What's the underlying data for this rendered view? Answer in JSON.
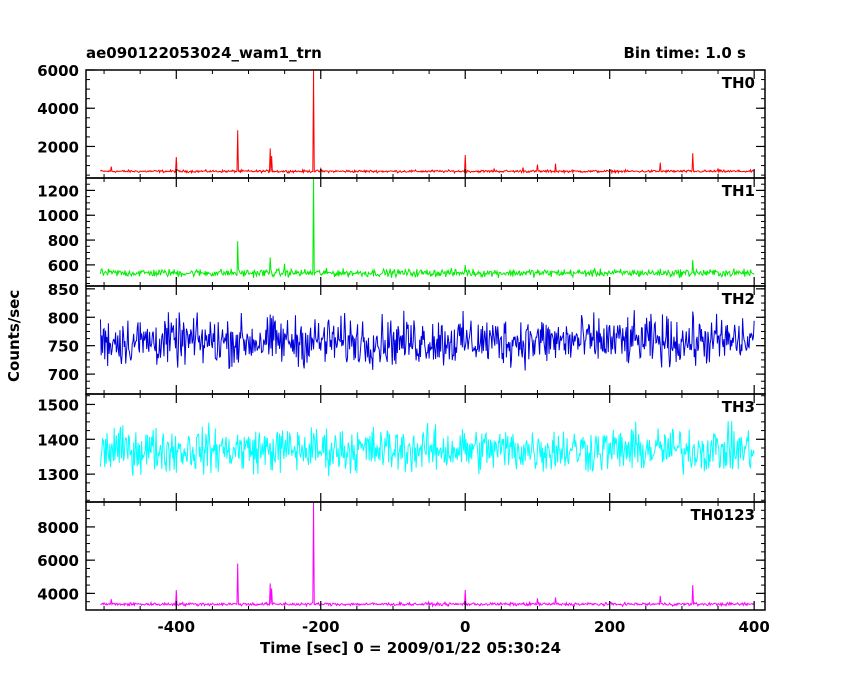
{
  "header": {
    "title": "ae090122053024_wam1_trn",
    "bin_time": "Bin time: 1.0 s"
  },
  "chart_data": {
    "type": "line",
    "xlabel": "Time [sec] 0 = 2009/01/22 05:30:24",
    "ylabel": "Counts/sec",
    "xlim": [
      -525,
      415
    ],
    "x_ticks": [
      -400,
      -200,
      0,
      200,
      400
    ],
    "x_range": [
      -505,
      400
    ],
    "panels": [
      {
        "name": "TH0",
        "color": "#ff0000",
        "ylim": [
          350,
          6000
        ],
        "y_ticks": [
          2000,
          4000,
          6000
        ],
        "baseline": 700,
        "noise": 45,
        "spikes": [
          [
            -490,
            950
          ],
          [
            -400,
            1450
          ],
          [
            -315,
            2850
          ],
          [
            -270,
            1900
          ],
          [
            -268,
            1500
          ],
          [
            -210,
            6000
          ],
          [
            -200,
            850
          ],
          [
            0,
            1550
          ],
          [
            40,
            850
          ],
          [
            80,
            900
          ],
          [
            100,
            1050
          ],
          [
            125,
            1100
          ],
          [
            270,
            1150
          ],
          [
            315,
            1650
          ],
          [
            350,
            850
          ]
        ]
      },
      {
        "name": "TH1",
        "color": "#00ee00",
        "ylim": [
          430,
          1300
        ],
        "y_ticks": [
          600,
          800,
          1000,
          1200
        ],
        "baseline": 535,
        "noise": 22,
        "spikes": [
          [
            -315,
            790
          ],
          [
            -270,
            660
          ],
          [
            -210,
            1300
          ],
          [
            -250,
            610
          ],
          [
            315,
            640
          ],
          [
            0,
            600
          ]
        ]
      },
      {
        "name": "TH2",
        "color": "#0000dd",
        "ylim": [
          665,
          855
        ],
        "y_ticks": [
          700,
          750,
          800,
          850
        ],
        "baseline": 758,
        "noise": 30,
        "spikes": []
      },
      {
        "name": "TH3",
        "color": "#00ffff",
        "ylim": [
          1220,
          1530
        ],
        "y_ticks": [
          1300,
          1400,
          1500
        ],
        "baseline": 1370,
        "noise": 45,
        "spikes": []
      },
      {
        "name": "TH0123",
        "color": "#ff00ff",
        "ylim": [
          3000,
          9500
        ],
        "y_ticks": [
          4000,
          6000,
          8000
        ],
        "baseline": 3350,
        "noise": 65,
        "spikes": [
          [
            -490,
            3650
          ],
          [
            -400,
            4200
          ],
          [
            -315,
            5800
          ],
          [
            -270,
            4600
          ],
          [
            -268,
            4300
          ],
          [
            -210,
            9500
          ],
          [
            0,
            4200
          ],
          [
            100,
            3700
          ],
          [
            125,
            3750
          ],
          [
            270,
            3850
          ],
          [
            315,
            4500
          ]
        ]
      }
    ]
  }
}
